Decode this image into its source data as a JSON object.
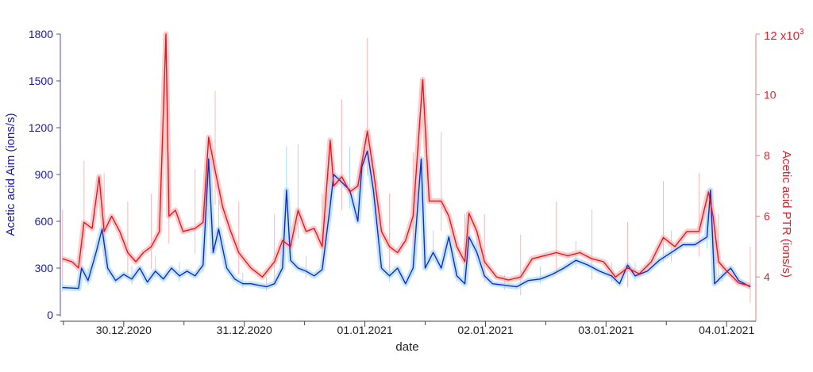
{
  "chart_data": {
    "type": "line",
    "xlabel": "date",
    "x_unit": "hours since 30.12.2020 00:00",
    "xlim": [
      -12.3,
      125.5
    ],
    "x_ticks": [
      {
        "x": 0,
        "label": "30.12.2020"
      },
      {
        "x": 24,
        "label": "31.12.2020"
      },
      {
        "x": 48,
        "label": "01.01.2021"
      },
      {
        "x": 72,
        "label": "02.01.2021"
      },
      {
        "x": 96,
        "label": "03.01.2021"
      },
      {
        "x": 120,
        "label": "04.01.2021"
      }
    ],
    "x_minor_ticks": [
      -12,
      12,
      36,
      60,
      84,
      108
    ],
    "left_axis": {
      "label": "Acetic acid Aim (ions/s)",
      "ylim": [
        0,
        1800
      ],
      "ticks": [
        "0",
        "300",
        "600",
        "900",
        "1200",
        "1500",
        "1800"
      ],
      "color": "#1a1aaa"
    },
    "right_axis": {
      "label": "Acetic acid PTR (ions/s)",
      "ylim": [
        2.75,
        12
      ],
      "ticks": [
        "4",
        "6",
        "8",
        "10",
        "12"
      ],
      "multiplier": "x10",
      "exponent": "3",
      "color": "#e0202a"
    },
    "grid": false,
    "series": [
      {
        "name": "Acetic acid Aim",
        "axis": "left",
        "color": "#1428c8",
        "band_color": "#a8dcf4",
        "x": [
          -12.2,
          -9.0,
          -8.4,
          -7.1,
          -5.5,
          -4.3,
          -3.2,
          -1.6,
          0,
          1.6,
          3.2,
          4.7,
          6.3,
          7.9,
          9.5,
          11.1,
          12.6,
          14.2,
          15.8,
          16.9,
          17.8,
          18.9,
          20.5,
          22.1,
          23.7,
          25.3,
          26.8,
          28.4,
          30.0,
          31.6,
          32.4,
          33.2,
          34.7,
          36.3,
          37.9,
          39.5,
          41.1,
          41.8,
          43.4,
          45.0,
          46.6,
          47.4,
          48.5,
          49.7,
          51.3,
          52.9,
          54.5,
          56.1,
          57.6,
          59.2,
          60.0,
          61.6,
          63.2,
          64.7,
          66.3,
          67.9,
          68.7,
          70.3,
          71.8,
          73.4,
          75.8,
          78.2,
          80.5,
          82.9,
          85.3,
          87.6,
          90.0,
          92.4,
          94.7,
          97.1,
          98.7,
          100.3,
          101.8,
          104.2,
          106.6,
          109.0,
          111.3,
          113.7,
          116.1,
          116.8,
          117.6,
          119.2,
          120.8,
          122.4,
          124.7
        ],
        "y": [
          175,
          170,
          300,
          220,
          400,
          550,
          300,
          220,
          260,
          230,
          300,
          210,
          280,
          230,
          300,
          250,
          280,
          250,
          320,
          1000,
          400,
          550,
          300,
          230,
          200,
          200,
          190,
          180,
          200,
          300,
          800,
          350,
          300,
          280,
          250,
          290,
          700,
          900,
          850,
          800,
          600,
          950,
          1050,
          800,
          300,
          250,
          300,
          200,
          300,
          1000,
          300,
          400,
          300,
          500,
          250,
          200,
          500,
          400,
          250,
          200,
          190,
          180,
          220,
          230,
          260,
          300,
          350,
          320,
          280,
          250,
          200,
          320,
          250,
          280,
          350,
          400,
          450,
          450,
          500,
          800,
          200,
          250,
          300,
          220,
          180
        ]
      },
      {
        "name": "Acetic acid PTR",
        "axis": "right",
        "color": "#e8141e",
        "band_color": "#f8b8b8",
        "x": [
          -12.2,
          -10.3,
          -9.0,
          -7.9,
          -6.3,
          -4.9,
          -3.9,
          -2.4,
          -0.8,
          0.8,
          2.4,
          3.9,
          5.5,
          7.1,
          8.4,
          9.0,
          10.3,
          11.8,
          14.2,
          15.8,
          16.9,
          18.2,
          19.7,
          21.3,
          22.9,
          25.3,
          27.6,
          30.0,
          31.6,
          33.2,
          34.7,
          36.3,
          37.9,
          39.5,
          41.1,
          41.8,
          43.4,
          45.0,
          46.6,
          48.5,
          49.7,
          51.3,
          52.9,
          54.5,
          56.1,
          57.6,
          59.5,
          60.8,
          63.2,
          64.7,
          66.3,
          67.9,
          68.7,
          70.3,
          71.8,
          74.2,
          76.6,
          79.0,
          81.3,
          83.7,
          86.1,
          88.4,
          90.8,
          93.2,
          95.5,
          97.9,
          100.3,
          102.6,
          105.0,
          107.4,
          109.7,
          112.1,
          114.5,
          116.4,
          117.3,
          118.4,
          120.0,
          122.4,
          124.7
        ],
        "y": [
          4.6,
          4.5,
          4.3,
          5.8,
          5.6,
          7.3,
          5.5,
          6.0,
          5.5,
          4.8,
          4.5,
          4.8,
          5.0,
          5.5,
          12,
          6.0,
          6.2,
          5.5,
          5.6,
          5.8,
          8.6,
          7.5,
          6.3,
          5.5,
          4.8,
          4.3,
          4.0,
          4.5,
          5.2,
          5.0,
          6.2,
          5.5,
          5.6,
          5.0,
          8.5,
          7.0,
          7.3,
          6.8,
          7.0,
          8.8,
          7.5,
          5.5,
          5.0,
          4.8,
          5.2,
          6.0,
          10.5,
          6.5,
          6.5,
          6.0,
          5.0,
          4.5,
          6.1,
          5.5,
          4.5,
          4.0,
          3.9,
          4.0,
          4.6,
          4.7,
          4.8,
          4.7,
          4.8,
          4.6,
          4.5,
          4.0,
          4.3,
          4.1,
          4.5,
          5.3,
          5.0,
          5.5,
          5.5,
          6.8,
          6.0,
          4.5,
          4.2,
          3.8,
          3.7
        ]
      }
    ]
  }
}
